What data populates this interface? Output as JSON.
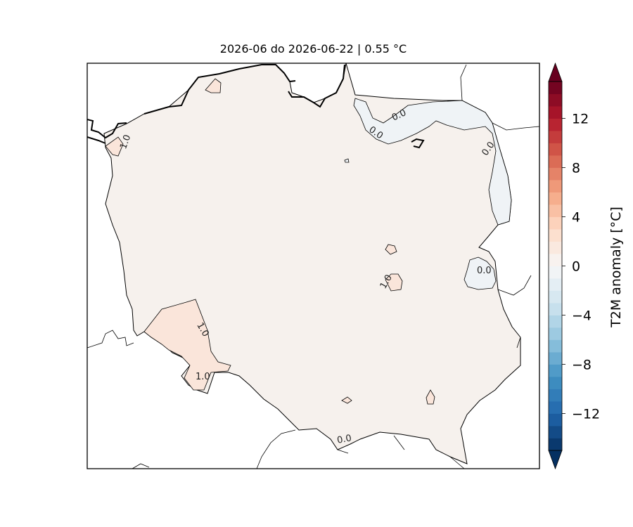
{
  "title": "2026-06 do 2026-06-22 | 0.55 °C",
  "colorbar": {
    "label": "T2M anomaly [°C]",
    "ticks": [
      "12",
      "8",
      "4",
      "0",
      "−4",
      "−8",
      "−12"
    ],
    "tick_values": [
      12,
      8,
      4,
      0,
      -4,
      -8,
      -12
    ],
    "vmin": -15,
    "vmax": 15,
    "levels": 30,
    "colormap": "RdBu_r"
  },
  "map": {
    "variable": "T2M anomaly",
    "mean_anomaly": 0.55,
    "contour_labels": [
      "0.0",
      "0.0",
      "0.0",
      "0.0",
      "1.0",
      "1.0",
      "1.0",
      "1.0",
      "0.0"
    ],
    "colors": {
      "land_main": "#f6f1ed",
      "warm_patch": "#fae5da",
      "cool_patch": "#eff3f6",
      "coastline": "#000000"
    }
  }
}
